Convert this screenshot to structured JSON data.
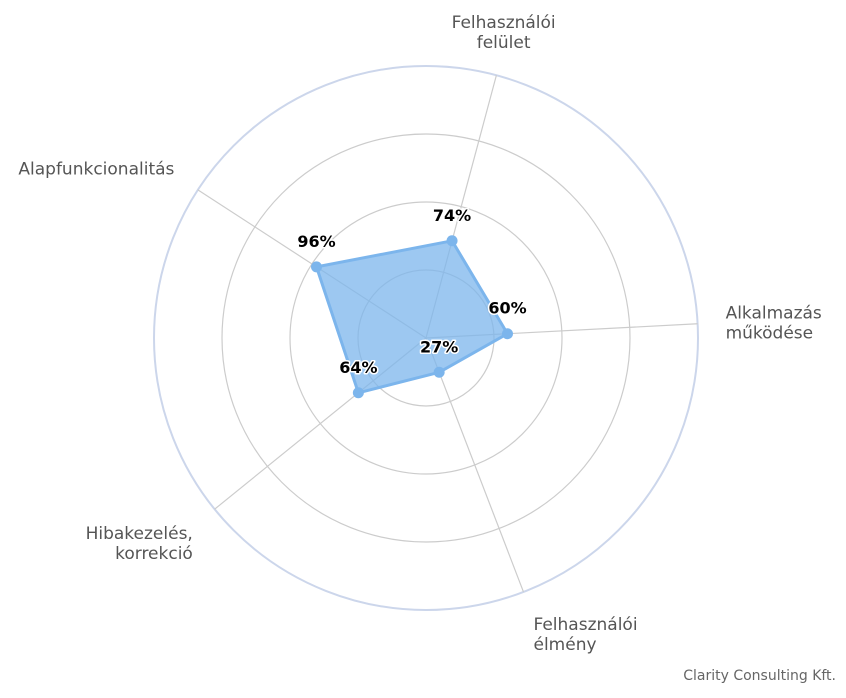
{
  "chart_data": {
    "type": "radar",
    "categories": [
      [
        "Felhasználói",
        "felület"
      ],
      [
        "Alkalmazás",
        "működése"
      ],
      [
        "Felhasználói",
        "élmény"
      ],
      [
        "Hibakezelés,",
        "korrekció"
      ],
      [
        "Alapfunkcionalitás"
      ]
    ],
    "series": [
      {
        "values": [
          74,
          60,
          27,
          64,
          96
        ]
      }
    ],
    "data_labels": [
      "74%",
      "60%",
      "27%",
      "64%",
      "96%"
    ],
    "rlim": [
      0,
      200
    ],
    "grid": true,
    "colors": {
      "fill": "#7cb5ec",
      "line": "#7cb5ec",
      "grid": "#cccccc",
      "outer": "#ccd6eb"
    }
  },
  "credit": "Clarity Consulting Kft."
}
